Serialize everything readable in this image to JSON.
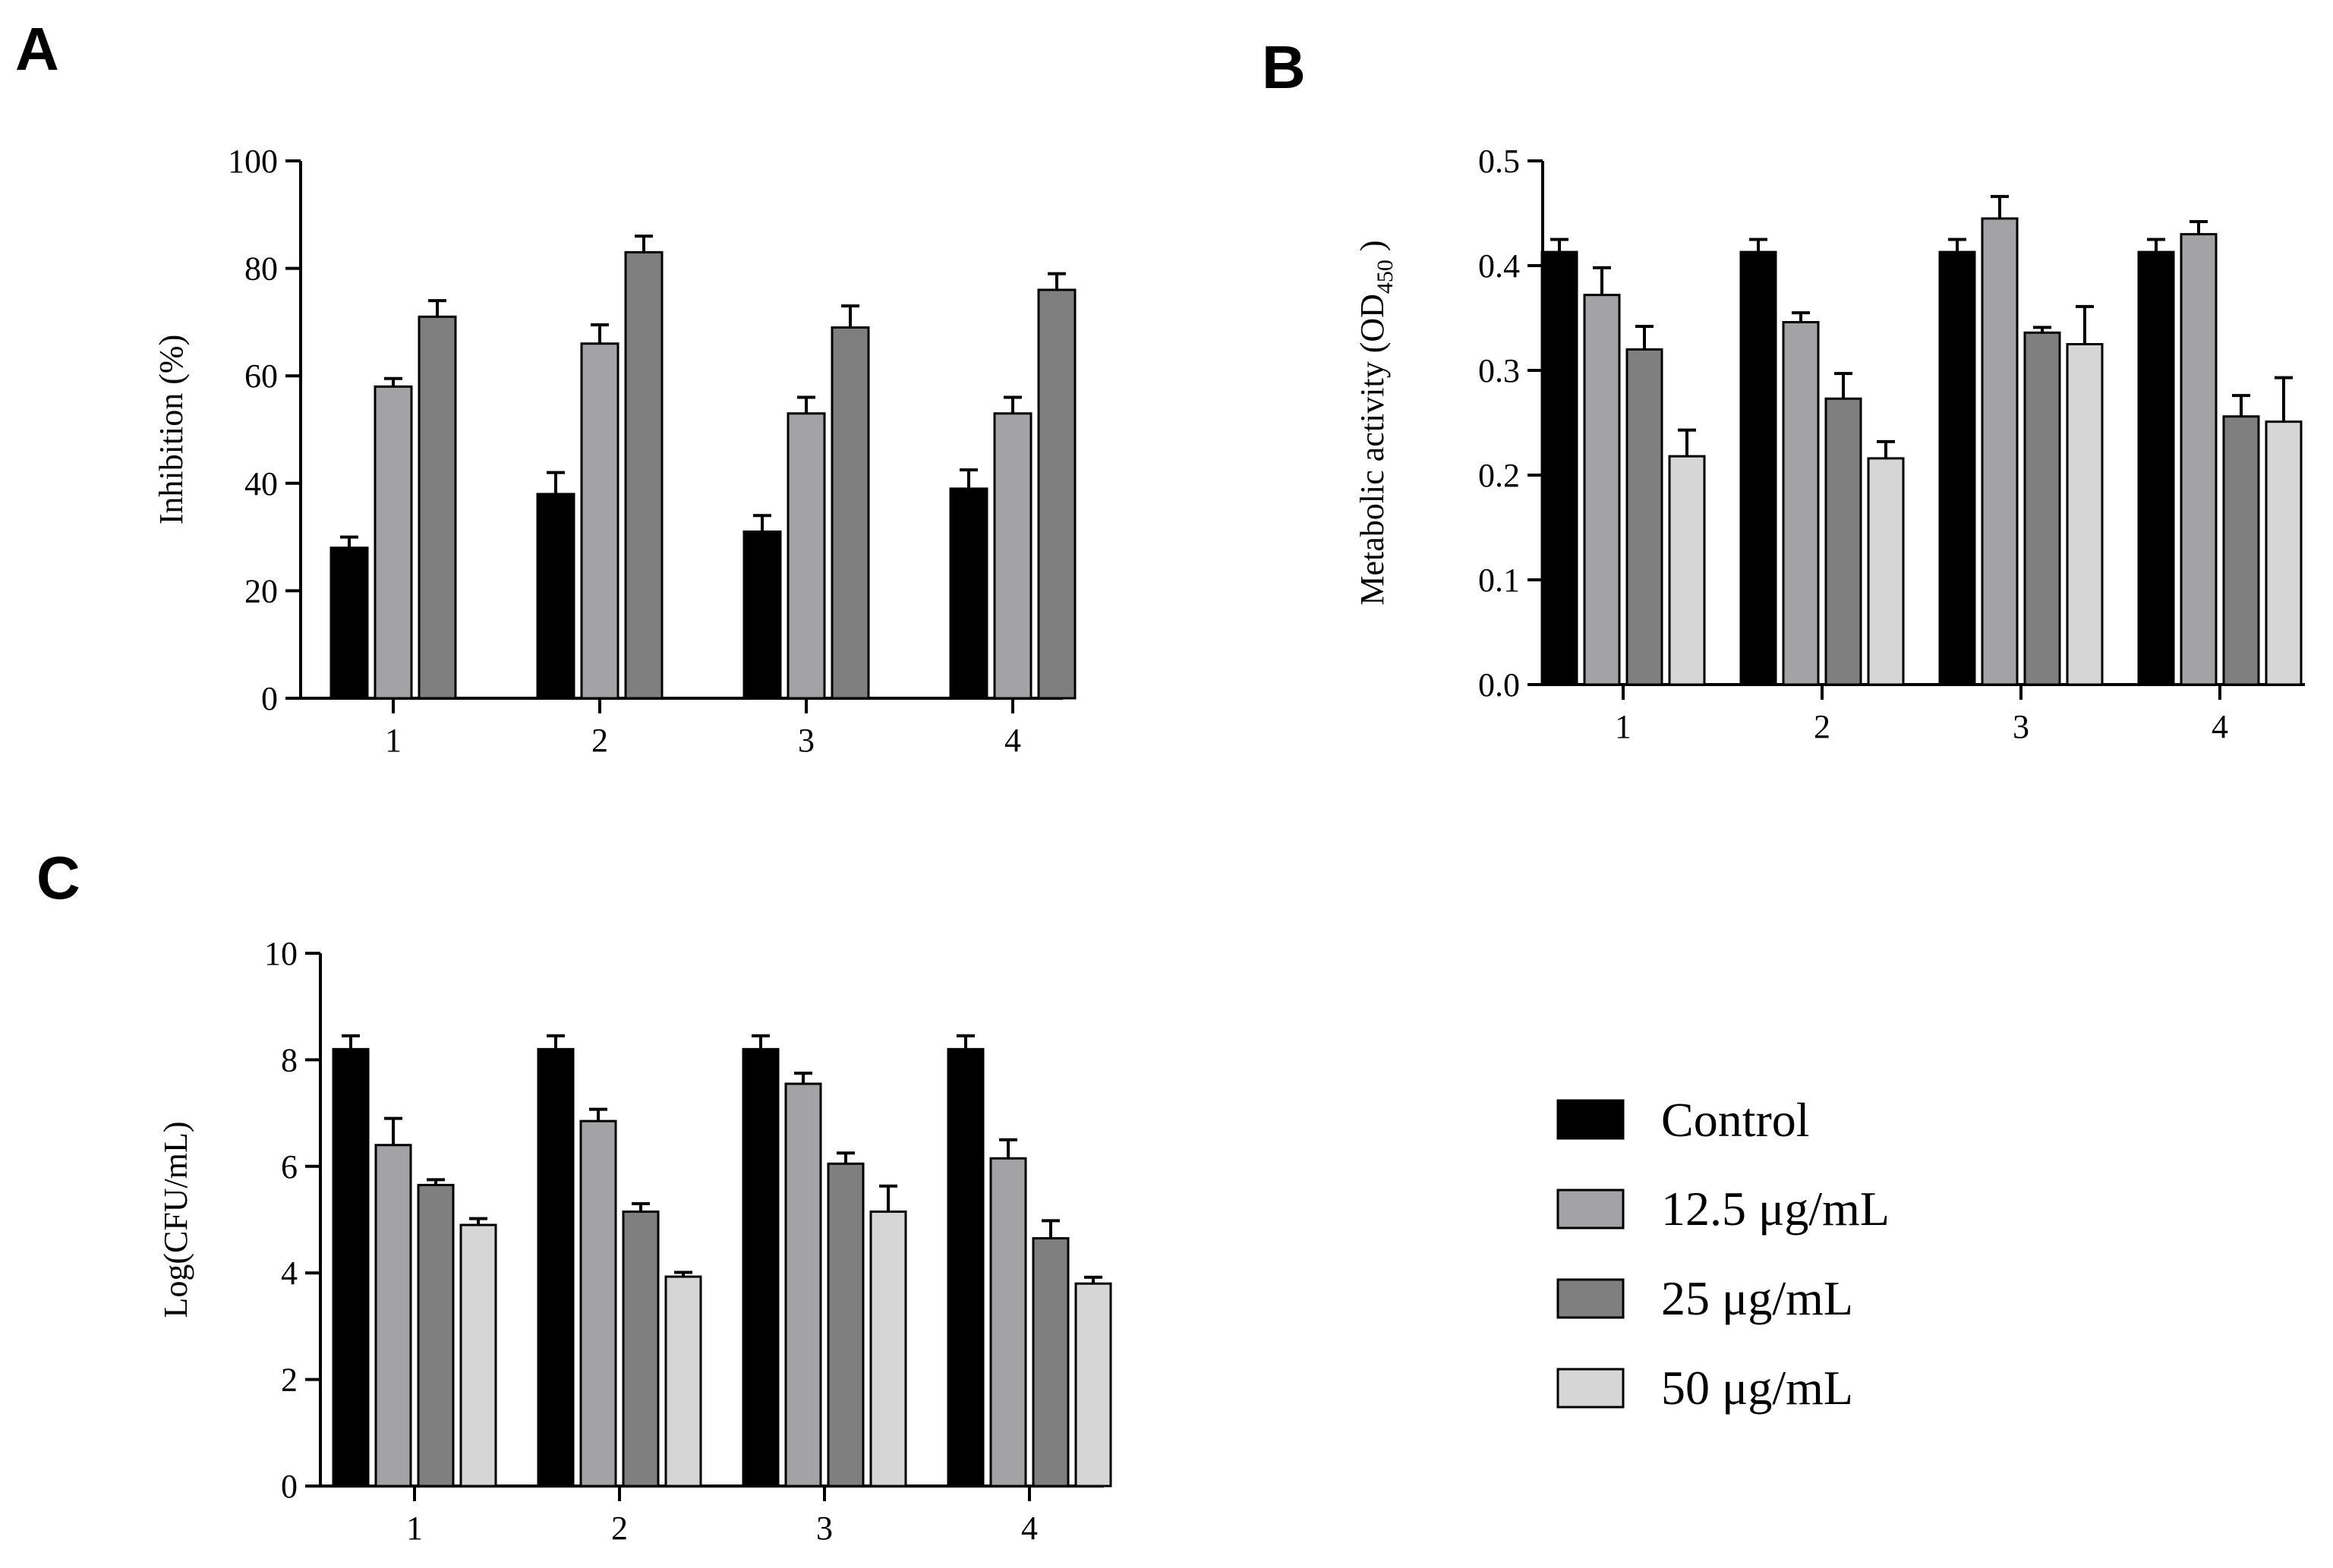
{
  "legend": {
    "items": [
      {
        "label": "Control",
        "color": "#000000"
      },
      {
        "label": "12.5 μg/mL",
        "color": "#a3a3a6"
      },
      {
        "label": "25 μg/mL",
        "color": "#7f7f7f"
      },
      {
        "label": "50 μg/mL",
        "color": "#d6d6d6"
      }
    ]
  },
  "chart_data": [
    {
      "panel": "A",
      "type": "bar",
      "ylabel": "Inhibition (%)",
      "xlabel": "",
      "ylim": [
        0,
        100
      ],
      "yticks": [
        "0",
        "20",
        "40",
        "60",
        "80",
        "100"
      ],
      "categories": [
        "1",
        "2",
        "3",
        "4"
      ],
      "series": [
        {
          "name": "Control",
          "values": [
            28,
            38,
            31,
            39
          ],
          "errors": [
            2,
            4,
            3,
            3.5
          ]
        },
        {
          "name": "12.5 μg/mL",
          "values": [
            58,
            66,
            53,
            53
          ],
          "errors": [
            1.5,
            3.5,
            3,
            3
          ]
        },
        {
          "name": "25 μg/mL",
          "values": [
            71,
            83,
            69,
            76
          ],
          "errors": [
            3,
            3,
            4,
            3
          ]
        }
      ]
    },
    {
      "panel": "B",
      "type": "bar",
      "ylabel": "Metabolic activity (OD",
      "ylabel_sub": "450",
      "ylabel_end": " )",
      "xlabel": "",
      "ylim": [
        0,
        0.5
      ],
      "yticks": [
        "0.0",
        "0.1",
        "0.2",
        "0.3",
        "0.4",
        "0.5"
      ],
      "categories": [
        "1",
        "2",
        "3",
        "4"
      ],
      "series": [
        {
          "name": "Control",
          "values": [
            0.413,
            0.413,
            0.413,
            0.413
          ],
          "errors": [
            0.012,
            0.012,
            0.012,
            0.012
          ]
        },
        {
          "name": "12.5 μg/mL",
          "values": [
            0.372,
            0.346,
            0.445,
            0.43
          ],
          "errors": [
            0.026,
            0.009,
            0.021,
            0.012
          ]
        },
        {
          "name": "25 μg/mL",
          "values": [
            0.32,
            0.273,
            0.336,
            0.256
          ],
          "errors": [
            0.022,
            0.024,
            0.005,
            0.02
          ]
        },
        {
          "name": "50 μg/mL",
          "values": [
            0.218,
            0.216,
            0.325,
            0.251
          ],
          "errors": [
            0.025,
            0.016,
            0.036,
            0.042
          ]
        }
      ]
    },
    {
      "panel": "C",
      "type": "bar",
      "ylabel": "Log(CFU/mL)",
      "xlabel": "",
      "ylim": [
        0,
        10
      ],
      "yticks": [
        "0",
        "2",
        "4",
        "6",
        "8",
        "10"
      ],
      "categories": [
        "1",
        "2",
        "3",
        "4"
      ],
      "series": [
        {
          "name": "Control",
          "values": [
            8.2,
            8.2,
            8.2,
            8.2
          ],
          "errors": [
            0.25,
            0.25,
            0.25,
            0.25
          ]
        },
        {
          "name": "12.5 μg/mL",
          "values": [
            6.4,
            6.85,
            7.55,
            6.15
          ],
          "errors": [
            0.5,
            0.22,
            0.2,
            0.35
          ]
        },
        {
          "name": "25 μg/mL",
          "values": [
            5.65,
            5.15,
            6.05,
            4.65
          ],
          "errors": [
            0.1,
            0.15,
            0.2,
            0.33
          ]
        },
        {
          "name": "50 μg/mL",
          "values": [
            4.9,
            3.93,
            5.15,
            3.8
          ],
          "errors": [
            0.12,
            0.08,
            0.48,
            0.12
          ]
        }
      ]
    }
  ]
}
